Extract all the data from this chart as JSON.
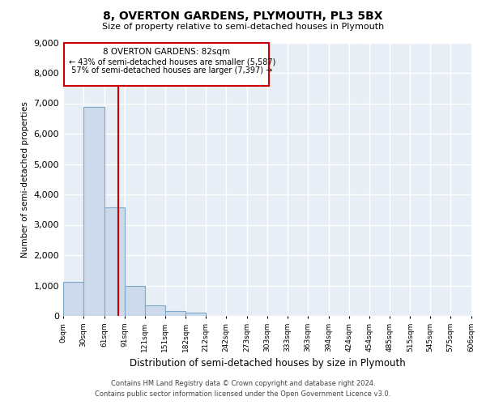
{
  "title": "8, OVERTON GARDENS, PLYMOUTH, PL3 5BX",
  "subtitle": "Size of property relative to semi-detached houses in Plymouth",
  "xlabel": "Distribution of semi-detached houses by size in Plymouth",
  "ylabel": "Number of semi-detached properties",
  "property_size": 82,
  "property_label": "8 OVERTON GARDENS: 82sqm",
  "pct_smaller": 43,
  "count_smaller": 5587,
  "pct_larger": 57,
  "count_larger": 7397,
  "bin_edges": [
    0,
    30,
    61,
    91,
    121,
    151,
    182,
    212,
    242,
    273,
    303,
    333,
    363,
    394,
    424,
    454,
    485,
    515,
    545,
    575,
    606
  ],
  "bin_labels": [
    "0sqm",
    "30sqm",
    "61sqm",
    "91sqm",
    "121sqm",
    "151sqm",
    "182sqm",
    "212sqm",
    "242sqm",
    "273sqm",
    "303sqm",
    "333sqm",
    "363sqm",
    "394sqm",
    "424sqm",
    "454sqm",
    "485sqm",
    "515sqm",
    "545sqm",
    "575sqm",
    "606sqm"
  ],
  "bar_values": [
    1130,
    6880,
    3570,
    980,
    360,
    150,
    100,
    0,
    0,
    0,
    0,
    0,
    0,
    0,
    0,
    0,
    0,
    0,
    0,
    0
  ],
  "bar_color": "#ccdaeb",
  "bar_edge_color": "#7aaac8",
  "line_color": "#cc0000",
  "box_edge_color": "#cc0000",
  "bg_color": "#e8eef5",
  "grid_color": "#ffffff",
  "ylim": [
    0,
    9000
  ],
  "yticks": [
    0,
    1000,
    2000,
    3000,
    4000,
    5000,
    6000,
    7000,
    8000,
    9000
  ],
  "footer_line1": "Contains HM Land Registry data © Crown copyright and database right 2024.",
  "footer_line2": "Contains public sector information licensed under the Open Government Licence v3.0."
}
